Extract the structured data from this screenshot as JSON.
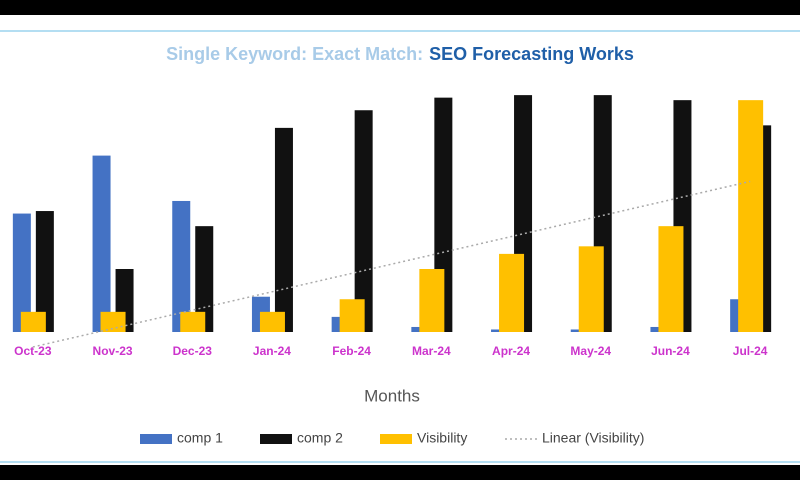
{
  "chart_data": {
    "type": "bar",
    "title": {
      "prefix": "Single Keyword: Exact Match:",
      "main": "SEO Forecasting Works"
    },
    "x_label": "Months",
    "categories": [
      "Oct-23",
      "Nov-23",
      "Dec-23",
      "Jan-24",
      "Feb-24",
      "Mar-24",
      "Apr-24",
      "May-24",
      "Jun-24",
      "Jul-24"
    ],
    "series": [
      {
        "name": "comp 1",
        "color": "#4472c4",
        "values": [
          47,
          70,
          52,
          14,
          6,
          2,
          1,
          1,
          2,
          13
        ]
      },
      {
        "name": "comp 2",
        "color": "#111111",
        "values": [
          48,
          25,
          42,
          81,
          88,
          93,
          94,
          94,
          92,
          82
        ]
      },
      {
        "name": "Visibility",
        "color": "#ffc000",
        "values": [
          8,
          8,
          8,
          8,
          13,
          25,
          31,
          34,
          42,
          92
        ]
      }
    ],
    "trendline": {
      "name": "Linear (Visibility)",
      "series": 2,
      "color": "#aaaaaa"
    },
    "ylim": [
      0,
      100
    ],
    "category_color": "#cc33cc"
  }
}
